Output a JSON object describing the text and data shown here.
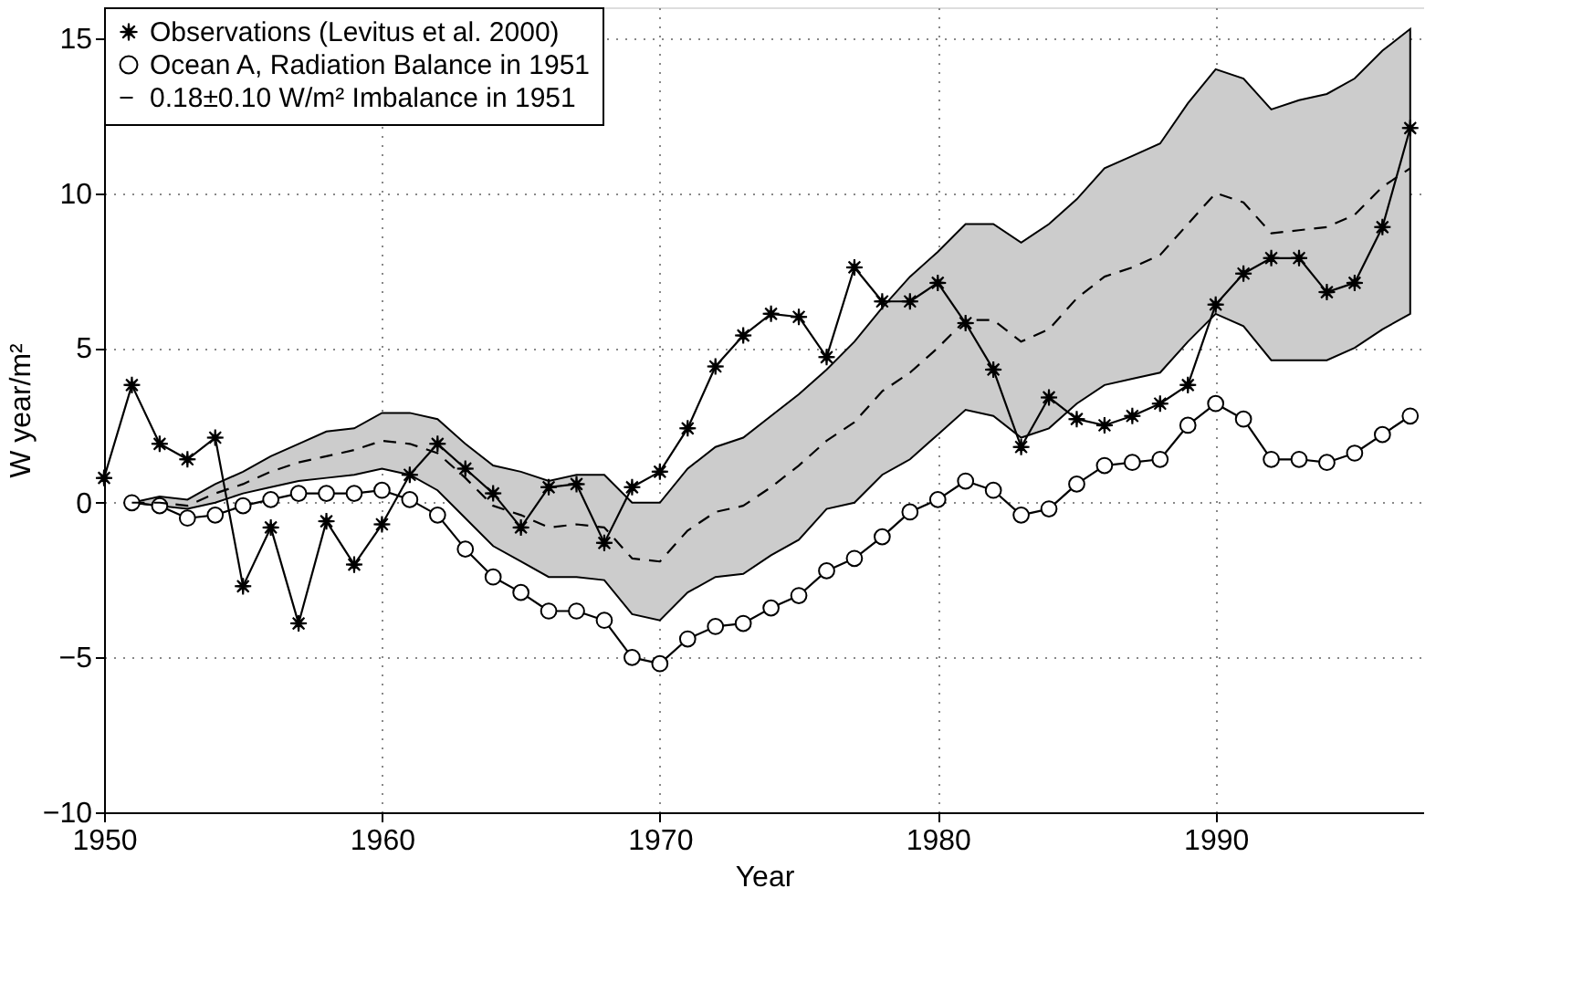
{
  "chart_data": {
    "type": "line",
    "xlabel": "Year",
    "ylabel": "W year/m²",
    "xlim": [
      1950,
      1997.5
    ],
    "xticks": [
      1950,
      1960,
      1970,
      1980,
      1990
    ],
    "ylim": [
      -10,
      16
    ],
    "yticks": [
      -10,
      -5,
      0,
      5,
      10,
      15
    ],
    "grid": true,
    "legend": "top left",
    "series": [
      {
        "name": "Observations (Levitus et al. 2000)",
        "color": "#000000",
        "marker": "star",
        "line_style": "solid",
        "x": [
          1950,
          1951,
          1952,
          1953,
          1954,
          1955,
          1956,
          1957,
          1958,
          1959,
          1960,
          1961,
          1962,
          1963,
          1964,
          1965,
          1966,
          1967,
          1968,
          1969,
          1970,
          1971,
          1972,
          1973,
          1974,
          1975,
          1976,
          1977,
          1978,
          1979,
          1980,
          1981,
          1982,
          1983,
          1984,
          1985,
          1986,
          1987,
          1988,
          1989,
          1990,
          1991,
          1992,
          1993,
          1994,
          1995,
          1996,
          1997
        ],
        "values": [
          0.8,
          3.8,
          1.9,
          1.4,
          2.1,
          -2.7,
          -0.8,
          -3.9,
          -0.6,
          -2.0,
          -0.7,
          0.9,
          1.9,
          1.1,
          0.3,
          -0.8,
          0.5,
          0.6,
          -1.3,
          0.5,
          1.0,
          2.4,
          4.4,
          5.4,
          6.1,
          6.0,
          4.7,
          7.6,
          6.5,
          6.5,
          7.1,
          5.8,
          4.3,
          1.8,
          3.4,
          2.7,
          2.5,
          2.8,
          3.2,
          3.8,
          6.4,
          7.4,
          7.9,
          7.9,
          6.8,
          7.1,
          8.9,
          12.1
        ]
      },
      {
        "name": "Ocean A, Radiation Balance in 1951",
        "color": "#000000",
        "marker": "circle",
        "line_style": "solid",
        "x": [
          1951,
          1952,
          1953,
          1954,
          1955,
          1956,
          1957,
          1958,
          1959,
          1960,
          1961,
          1962,
          1963,
          1964,
          1965,
          1966,
          1967,
          1968,
          1969,
          1970,
          1971,
          1972,
          1973,
          1974,
          1975,
          1976,
          1977,
          1978,
          1979,
          1980,
          1981,
          1982,
          1983,
          1984,
          1985,
          1986,
          1987,
          1988,
          1989,
          1990,
          1991,
          1992,
          1993,
          1994,
          1995,
          1996,
          1997
        ],
        "values": [
          0.0,
          -0.1,
          -0.5,
          -0.4,
          -0.1,
          0.1,
          0.3,
          0.3,
          0.3,
          0.4,
          0.1,
          -0.4,
          -1.5,
          -2.4,
          -2.9,
          -3.5,
          -3.5,
          -3.8,
          -5.0,
          -5.2,
          -4.4,
          -4.0,
          -3.9,
          -3.4,
          -3.0,
          -2.2,
          -1.8,
          -1.1,
          -0.3,
          0.1,
          0.7,
          0.4,
          -0.4,
          -0.2,
          0.6,
          1.2,
          1.3,
          1.4,
          2.5,
          3.2,
          2.7,
          1.4,
          1.4,
          1.3,
          1.6,
          2.2,
          2.8
        ]
      },
      {
        "name": "0.18±0.10 W/m² Imbalance in 1951",
        "color": "#000000",
        "marker": "none",
        "line_style": "dashed",
        "x": [
          1951,
          1952,
          1953,
          1954,
          1955,
          1956,
          1957,
          1958,
          1959,
          1960,
          1961,
          1962,
          1963,
          1964,
          1965,
          1966,
          1967,
          1968,
          1969,
          1970,
          1971,
          1972,
          1973,
          1974,
          1975,
          1976,
          1977,
          1978,
          1979,
          1980,
          1981,
          1982,
          1983,
          1984,
          1985,
          1986,
          1987,
          1988,
          1989,
          1990,
          1991,
          1992,
          1993,
          1994,
          1995,
          1996,
          1997
        ],
        "values": [
          0.0,
          0.0,
          -0.1,
          0.3,
          0.6,
          1.0,
          1.3,
          1.5,
          1.7,
          2.0,
          1.9,
          1.6,
          0.8,
          -0.1,
          -0.4,
          -0.8,
          -0.7,
          -0.8,
          -1.8,
          -1.9,
          -0.9,
          -0.3,
          -0.1,
          0.5,
          1.2,
          2.0,
          2.6,
          3.6,
          4.2,
          5.0,
          5.9,
          5.9,
          5.2,
          5.6,
          6.6,
          7.3,
          7.6,
          8.0,
          9.0,
          10.0,
          9.7,
          8.7,
          8.8,
          8.9,
          9.3,
          10.2,
          10.8
        ],
        "lower": [
          0.0,
          -0.1,
          -0.2,
          0.0,
          0.3,
          0.5,
          0.7,
          0.8,
          0.9,
          1.1,
          0.9,
          0.4,
          -0.5,
          -1.4,
          -1.9,
          -2.4,
          -2.4,
          -2.5,
          -3.6,
          -3.8,
          -2.9,
          -2.4,
          -2.3,
          -1.7,
          -1.2,
          -0.2,
          0.0,
          0.9,
          1.4,
          2.2,
          3.0,
          2.8,
          2.1,
          2.4,
          3.2,
          3.8,
          4.0,
          4.2,
          5.2,
          6.1,
          5.7,
          4.6,
          4.6,
          4.6,
          5.0,
          5.6,
          6.1
        ],
        "upper": [
          0.0,
          0.2,
          0.1,
          0.6,
          1.0,
          1.5,
          1.9,
          2.3,
          2.4,
          2.9,
          2.9,
          2.7,
          1.9,
          1.2,
          1.0,
          0.7,
          0.9,
          0.9,
          0.0,
          0.0,
          1.1,
          1.8,
          2.1,
          2.8,
          3.5,
          4.3,
          5.2,
          6.3,
          7.3,
          8.1,
          9.0,
          9.0,
          8.4,
          9.0,
          9.8,
          10.8,
          11.2,
          11.6,
          12.9,
          14.0,
          13.7,
          12.7,
          13.0,
          13.2,
          13.7,
          14.6,
          15.3
        ]
      }
    ]
  }
}
